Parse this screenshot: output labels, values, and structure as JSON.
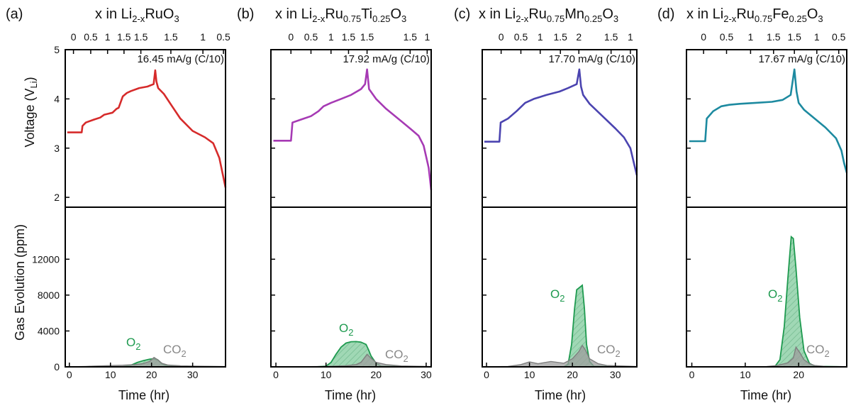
{
  "y_axis_titles": {
    "voltage": [
      "Voltage (V",
      "Li",
      ")"
    ],
    "gas": "Gas Evolution (ppm)"
  },
  "chart_data": [
    {
      "type": "line",
      "panel_label": "(a)",
      "title": [
        "x in Li",
        "2-x",
        "RuO",
        "3",
        "",
        "",
        "",
        ""
      ],
      "rate_label": "16.45 mA/g (C/10)",
      "xlabel": "Time (hr)",
      "xlim": [
        -1,
        38
      ],
      "xticks": [
        0,
        10,
        20,
        30
      ],
      "top_axis_ticks": [
        {
          "t": 1,
          "label": "0"
        },
        {
          "t": 5.2,
          "label": "0.5"
        },
        {
          "t": 9.3,
          "label": "1"
        },
        {
          "t": 13.3,
          "label": "1.5"
        },
        {
          "t": 17.4,
          "label": "1.5"
        },
        {
          "t": 24.7,
          "label": "1.5"
        },
        {
          "t": 32.5,
          "label": "1"
        },
        {
          "t": 37.5,
          "label": "0.5"
        }
      ],
      "voltage": {
        "ylim": [
          1.8,
          5.0
        ],
        "yticks": [
          2,
          3,
          4,
          5
        ],
        "color": "#d62b2b",
        "x": [
          -0.5,
          3,
          3.2,
          4,
          6,
          7.5,
          8.5,
          9.5,
          10.5,
          11.5,
          12,
          13,
          14,
          15,
          17,
          19,
          20.5,
          20.9,
          21.2,
          21.6,
          23,
          25,
          27,
          30,
          33,
          35,
          36.5,
          38
        ],
        "y": [
          3.32,
          3.32,
          3.45,
          3.52,
          3.58,
          3.62,
          3.68,
          3.7,
          3.72,
          3.8,
          3.82,
          4.05,
          4.12,
          4.16,
          4.22,
          4.25,
          4.3,
          4.58,
          4.35,
          4.22,
          4.1,
          3.85,
          3.6,
          3.35,
          3.22,
          3.1,
          2.8,
          2.2
        ]
      },
      "gas": {
        "ylim": [
          0,
          17800
        ],
        "yticks": [
          0,
          4000,
          8000,
          12000
        ],
        "show_ticklabels": true,
        "series": [
          {
            "name": "O2",
            "color": "#1e9a4f",
            "x": [
              -0.5,
              13,
              15,
              16.5,
              18,
              19.5,
              20.5,
              21.5,
              22.5,
              24,
              38
            ],
            "y": [
              0,
              0,
              180,
              480,
              700,
              850,
              900,
              780,
              350,
              60,
              0
            ]
          },
          {
            "name": "CO2",
            "color": "#7f7f7f",
            "x": [
              -0.5,
              4,
              6,
              8,
              10,
              13,
              16,
              18,
              19.5,
              20.6,
              21.5,
              22.5,
              24,
              27,
              30,
              33,
              38
            ],
            "y": [
              0,
              50,
              90,
              110,
              140,
              180,
              250,
              360,
              600,
              1050,
              800,
              400,
              200,
              120,
              80,
              60,
              30
            ]
          }
        ]
      },
      "gas_labels": {
        "o2": "O",
        "o2_sub": "2",
        "co2": "CO",
        "co2_sub": "2"
      }
    },
    {
      "type": "line",
      "panel_label": "(b)",
      "title": [
        "x in Li",
        "2-x",
        "Ru",
        "0.75",
        "Ti",
        "0.25",
        "O",
        "3"
      ],
      "rate_label": "17.92 mA/g (C/10)",
      "xlabel": "Time (hr)",
      "xlim": [
        -1,
        31
      ],
      "xticks": [
        0,
        10,
        20,
        30
      ],
      "top_axis_ticks": [
        {
          "t": 3,
          "label": "0"
        },
        {
          "t": 7,
          "label": "0.5"
        },
        {
          "t": 11,
          "label": "1"
        },
        {
          "t": 14.5,
          "label": "1.5"
        },
        {
          "t": 18.2,
          "label": "1.5"
        },
        {
          "t": 26.8,
          "label": "1.5"
        },
        {
          "t": 30.2,
          "label": "1"
        }
      ],
      "voltage": {
        "ylim": [
          1.8,
          5.0
        ],
        "yticks": [
          2,
          3,
          4,
          5
        ],
        "color": "#a63ab4",
        "x": [
          -0.5,
          3,
          3.3,
          5,
          7,
          8.5,
          9.5,
          11,
          13,
          15,
          17,
          17.8,
          18.2,
          18.6,
          20,
          22,
          25,
          27,
          28.5,
          29.5,
          30.5,
          31
        ],
        "y": [
          3.15,
          3.15,
          3.52,
          3.58,
          3.65,
          3.75,
          3.85,
          3.92,
          4.0,
          4.08,
          4.2,
          4.3,
          4.6,
          4.2,
          4.0,
          3.8,
          3.55,
          3.38,
          3.25,
          3.05,
          2.6,
          2.15
        ]
      },
      "gas": {
        "ylim": [
          0,
          17800
        ],
        "yticks": [
          0,
          4000,
          8000,
          12000
        ],
        "show_ticklabels": false,
        "series": [
          {
            "name": "O2",
            "color": "#1e9a4f",
            "x": [
              -0.5,
              8,
              10,
              11,
              12,
              13,
              14,
              15,
              16,
              17,
              18,
              18.5,
              19,
              20,
              21,
              31
            ],
            "y": [
              0,
              0,
              80,
              500,
              1400,
              2200,
              2650,
              2800,
              2820,
              2750,
              2500,
              1900,
              1200,
              400,
              80,
              0
            ]
          },
          {
            "name": "CO2",
            "color": "#7f7f7f",
            "x": [
              -0.5,
              6,
              10,
              14,
              16,
              17,
              18.2,
              19,
              20,
              22,
              25,
              31
            ],
            "y": [
              0,
              20,
              50,
              120,
              250,
              500,
              1400,
              950,
              500,
              250,
              100,
              30
            ]
          }
        ]
      },
      "gas_labels": {
        "o2": "O",
        "o2_sub": "2",
        "co2": "CO",
        "co2_sub": "2"
      }
    },
    {
      "type": "line",
      "panel_label": "(c)",
      "title": [
        "x in Li",
        "2-x",
        "Ru",
        "0.75",
        "Mn",
        "0.25",
        "O",
        "3"
      ],
      "rate_label": "17.70 mA/g (C/10)",
      "xlabel": "Time (hr)",
      "xlim": [
        -1,
        35
      ],
      "xticks": [
        0,
        10,
        20,
        30
      ],
      "top_axis_ticks": [
        {
          "t": 3.4,
          "label": "0"
        },
        {
          "t": 8,
          "label": "0.5"
        },
        {
          "t": 12.5,
          "label": "1"
        },
        {
          "t": 17.2,
          "label": "1.5"
        },
        {
          "t": 21.5,
          "label": "2"
        },
        {
          "t": 29,
          "label": "1.5"
        },
        {
          "t": 33.5,
          "label": "1"
        }
      ],
      "voltage": {
        "ylim": [
          1.8,
          5.0
        ],
        "yticks": [
          2,
          3,
          4,
          5
        ],
        "color": "#4b44b0",
        "x": [
          -0.5,
          3,
          3.3,
          5,
          7,
          9,
          11,
          14,
          17,
          19,
          21,
          21.6,
          22,
          22.5,
          24,
          27,
          30,
          32,
          33.5,
          34.3,
          35
        ],
        "y": [
          3.13,
          3.13,
          3.52,
          3.6,
          3.75,
          3.92,
          4.0,
          4.08,
          4.15,
          4.22,
          4.3,
          4.6,
          4.25,
          4.08,
          3.9,
          3.65,
          3.4,
          3.22,
          3.0,
          2.7,
          2.45
        ]
      },
      "gas": {
        "ylim": [
          0,
          17800
        ],
        "yticks": [
          0,
          4000,
          8000,
          12000
        ],
        "show_ticklabels": false,
        "series": [
          {
            "name": "O2",
            "color": "#1e9a4f",
            "x": [
              -0.5,
              18,
              19,
              19.8,
              20.5,
              21,
              21.8,
              22.3,
              22.8,
              23.3,
              24,
              25,
              35
            ],
            "y": [
              0,
              0,
              300,
              2500,
              6500,
              8600,
              8900,
              9100,
              6500,
              2500,
              600,
              60,
              0
            ]
          },
          {
            "name": "CO2",
            "color": "#7f7f7f",
            "x": [
              -0.5,
              5,
              8,
              10,
              12,
              15,
              18,
              20,
              21.5,
              22.3,
              23,
              24,
              26,
              28,
              35
            ],
            "y": [
              0,
              50,
              250,
              550,
              350,
              600,
              400,
              900,
              1700,
              2400,
              1900,
              900,
              350,
              150,
              40
            ]
          }
        ]
      },
      "gas_labels": {
        "o2": "O",
        "o2_sub": "2",
        "co2": "CO",
        "co2_sub": "2"
      }
    },
    {
      "type": "line",
      "panel_label": "(d)",
      "title": [
        "x in Li",
        "2-x",
        "Ru",
        "0.75",
        "Fe",
        "0.25",
        "O",
        "3"
      ],
      "rate_label": "17.67 mA/g (C/10)",
      "xlabel": "Time (hr)",
      "xlim": [
        -1,
        29
      ],
      "xticks": [
        0,
        10,
        20
      ],
      "top_axis_ticks": [
        {
          "t": 2.2,
          "label": "0"
        },
        {
          "t": 6.5,
          "label": "0.5"
        },
        {
          "t": 11,
          "label": "1"
        },
        {
          "t": 15.3,
          "label": "1.5"
        },
        {
          "t": 19.2,
          "label": "1.5"
        },
        {
          "t": 23.4,
          "label": "1"
        },
        {
          "t": 27.5,
          "label": "0.5"
        }
      ],
      "voltage": {
        "ylim": [
          1.8,
          5.0
        ],
        "yticks": [
          2,
          3,
          4,
          5
        ],
        "color": "#1d8aa0",
        "x": [
          -0.5,
          2.5,
          2.8,
          4,
          5.5,
          7,
          9,
          12,
          15,
          17,
          18.5,
          19.2,
          19.6,
          20,
          21,
          23,
          25,
          27,
          28,
          28.5,
          29
        ],
        "y": [
          3.14,
          3.14,
          3.6,
          3.75,
          3.85,
          3.88,
          3.9,
          3.92,
          3.94,
          3.98,
          4.08,
          4.6,
          4.15,
          3.92,
          3.78,
          3.6,
          3.42,
          3.2,
          2.95,
          2.7,
          2.5
        ]
      },
      "gas": {
        "ylim": [
          0,
          17800
        ],
        "yticks": [
          0,
          4000,
          8000,
          12000
        ],
        "show_ticklabels": false,
        "series": [
          {
            "name": "O2",
            "color": "#1e9a4f",
            "x": [
              -0.5,
              15.5,
              16.5,
              17.3,
              18,
              18.6,
              19,
              19.5,
              20.2,
              21,
              22,
              23,
              29
            ],
            "y": [
              0,
              0,
              800,
              4500,
              10000,
              14500,
              14300,
              11000,
              5500,
              1800,
              400,
              60,
              0
            ]
          },
          {
            "name": "CO2",
            "color": "#7f7f7f",
            "x": [
              -0.5,
              14,
              16,
              18,
              19,
              19.5,
              20.2,
              21,
              22,
              23,
              25,
              29
            ],
            "y": [
              0,
              30,
              150,
              450,
              1000,
              2200,
              1600,
              800,
              350,
              150,
              50,
              20
            ]
          }
        ]
      },
      "gas_labels": {
        "o2": "O",
        "o2_sub": "2",
        "co2": "CO",
        "co2_sub": "2"
      }
    }
  ]
}
